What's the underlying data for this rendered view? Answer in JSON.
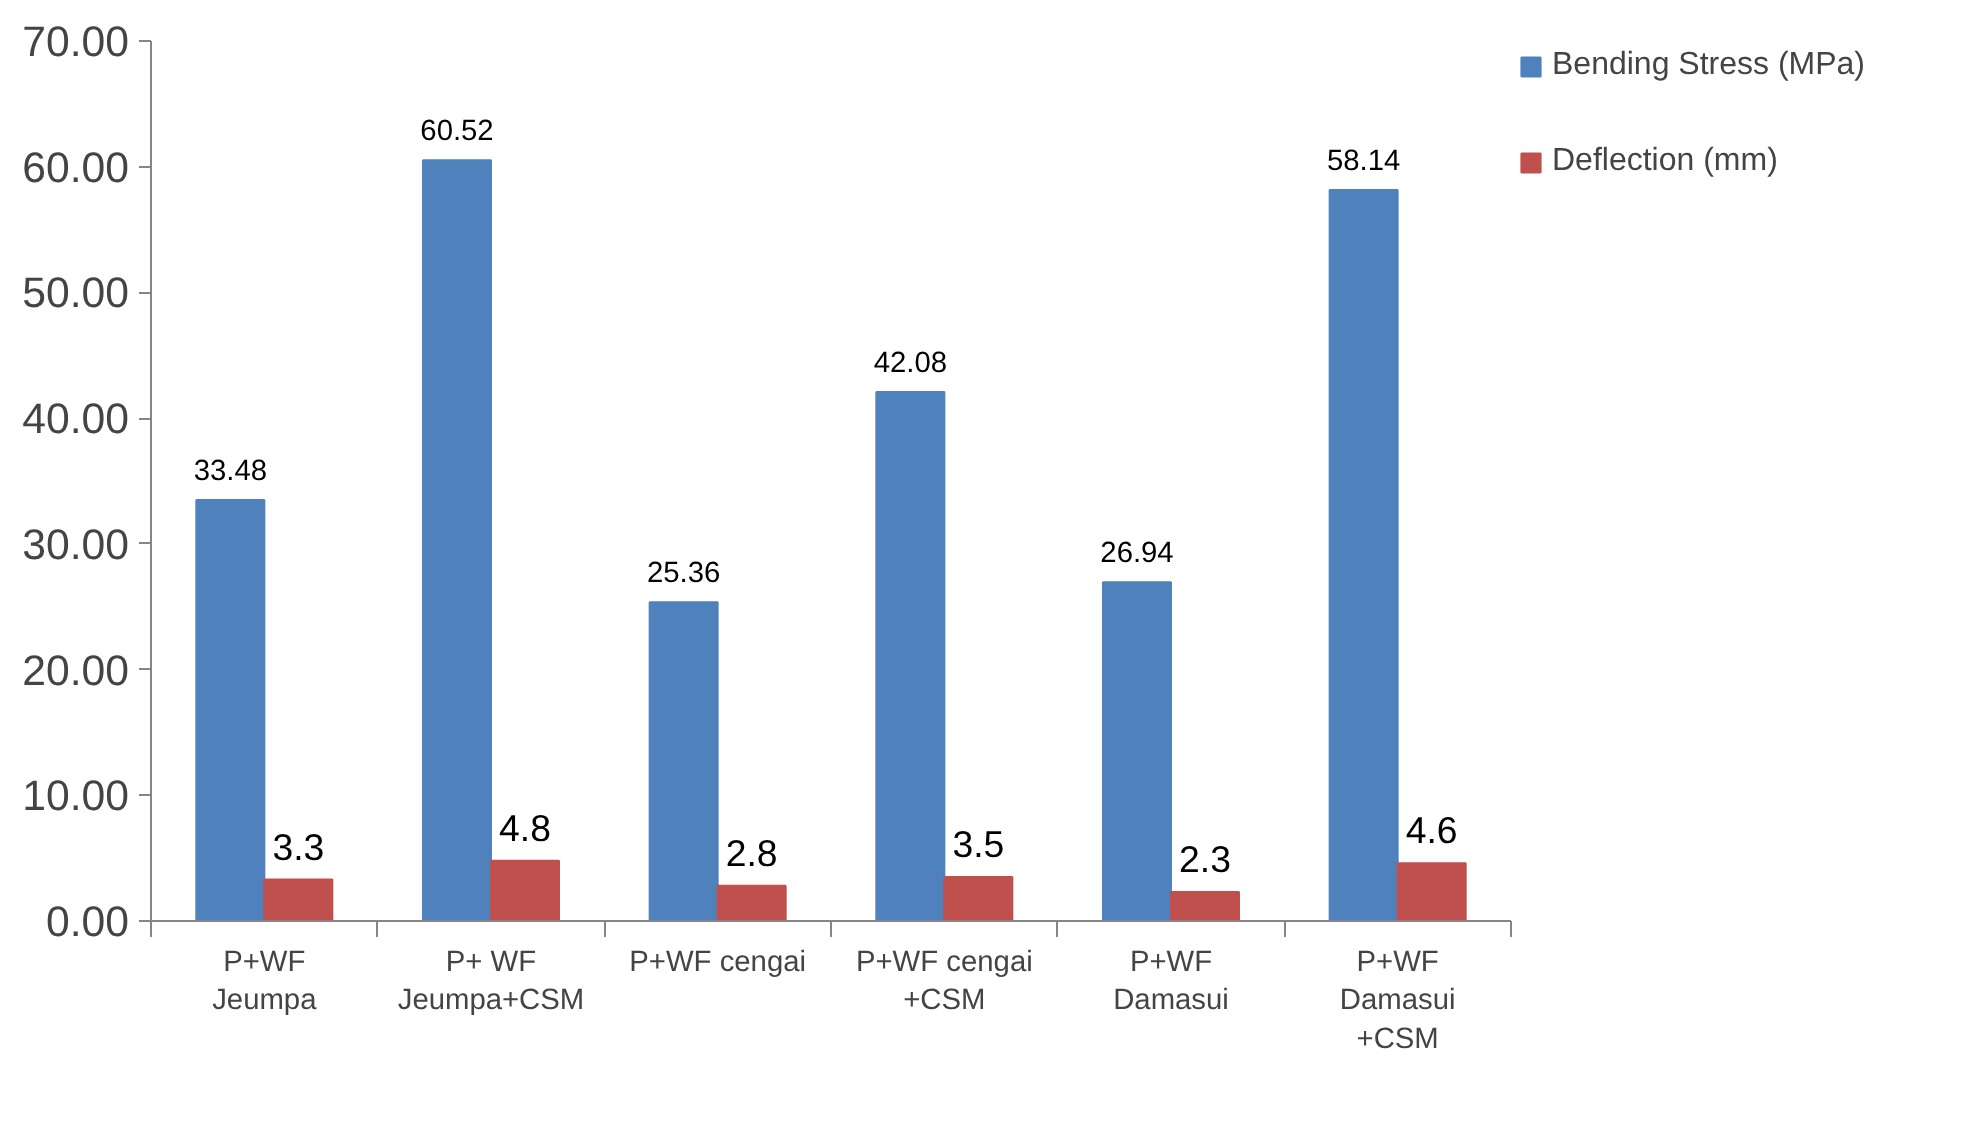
{
  "chart_data": {
    "type": "bar",
    "categories": [
      "P+WF\nJeumpa",
      "P+ WF\nJeumpa+CSM",
      "P+WF cengai",
      "P+WF cengai\n+CSM",
      "P+WF\nDamasui",
      "P+WF\nDamasui\n+CSM"
    ],
    "series": [
      {
        "name": "Bending Stress (MPa)",
        "color": "#4f81bd",
        "values": [
          33.48,
          60.52,
          25.36,
          42.08,
          26.94,
          58.14
        ]
      },
      {
        "name": "Deflection (mm)",
        "color": "#c0504d",
        "values": [
          3.3,
          4.8,
          2.8,
          3.5,
          2.3,
          4.6
        ]
      }
    ],
    "ylim": [
      0,
      70
    ],
    "yticks": [
      {
        "value": 0,
        "label": "0.00"
      },
      {
        "value": 10,
        "label": "10.00"
      },
      {
        "value": 20,
        "label": "20.00"
      },
      {
        "value": 30,
        "label": "30.00"
      },
      {
        "value": 40,
        "label": "40.00"
      },
      {
        "value": 50,
        "label": "50.00"
      },
      {
        "value": 60,
        "label": "60.00"
      },
      {
        "value": 70,
        "label": "70.00"
      }
    ],
    "data_labels": true,
    "grid": false,
    "legend": "right"
  }
}
